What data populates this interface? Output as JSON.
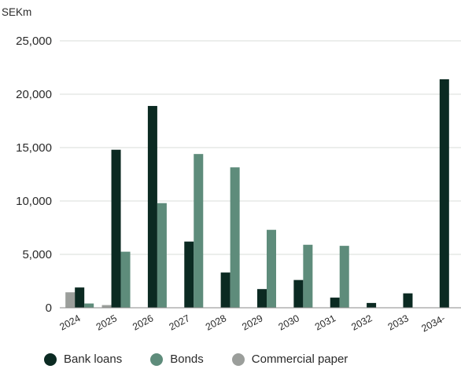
{
  "chart_data": {
    "type": "bar",
    "unit_label": "SEKm",
    "categories": [
      "2024",
      "2025",
      "2026",
      "2027",
      "2028",
      "2029",
      "2030",
      "2031",
      "2032",
      "2033",
      "2034-"
    ],
    "series": [
      {
        "name": "Commercial paper",
        "color": "#9b9e9b",
        "values": [
          1450,
          250,
          0,
          0,
          0,
          0,
          0,
          0,
          0,
          0,
          0
        ]
      },
      {
        "name": "Bank loans",
        "color": "#0b2a22",
        "values": [
          1900,
          14800,
          18900,
          6200,
          3300,
          1750,
          2600,
          950,
          450,
          1350,
          21400
        ]
      },
      {
        "name": "Bonds",
        "color": "#5e8c7b",
        "values": [
          400,
          5250,
          9800,
          14400,
          13150,
          7300,
          5900,
          5800,
          0,
          0,
          0
        ]
      }
    ],
    "legend_order": [
      "Bank loans",
      "Bonds",
      "Commercial paper"
    ],
    "yticks": [
      "0",
      "5,000",
      "10,000",
      "15,000",
      "20,000",
      "25,000"
    ],
    "ytick_values": [
      0,
      5000,
      10000,
      15000,
      20000,
      25000
    ],
    "ylim": [
      0,
      25000
    ],
    "grid": true,
    "legend_position": "bottom-left"
  }
}
